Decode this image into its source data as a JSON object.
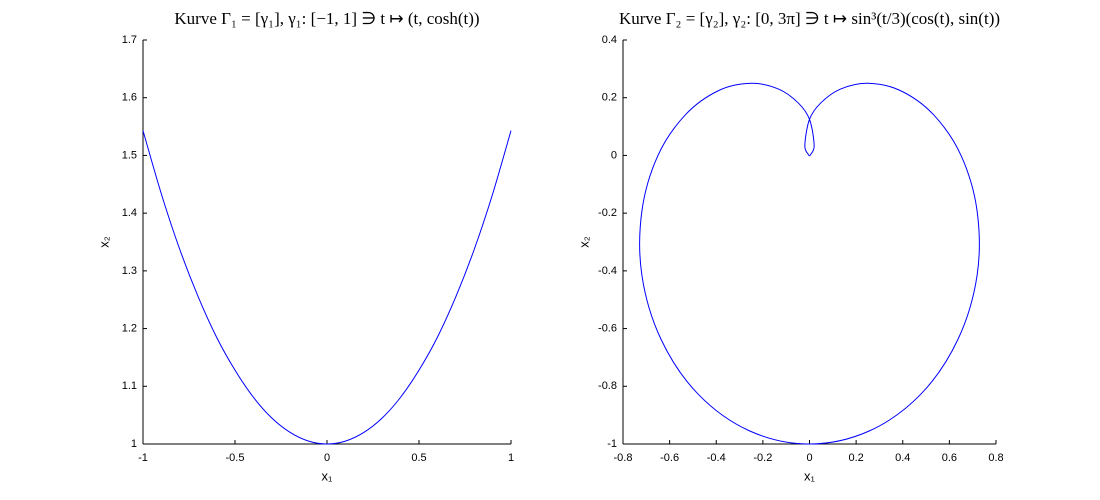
{
  "chart_data": [
    {
      "type": "line",
      "title": "Kurve Γ₁ = [γ₁], γ₁: [−1, 1] ∋ t ↦ (t, cosh(t))",
      "x_label": "x₁",
      "y_label": "x₂",
      "x": [
        -1,
        -0.9,
        -0.8,
        -0.7,
        -0.6,
        -0.5,
        -0.4,
        -0.3,
        -0.2,
        -0.1,
        0,
        0.1,
        0.2,
        0.3,
        0.4,
        0.5,
        0.6,
        0.7,
        0.8,
        0.9,
        1
      ],
      "series": [
        {
          "color": "#0000ff",
          "values": [
            1.543,
            1.433,
            1.337,
            1.255,
            1.185,
            1.128,
            1.081,
            1.045,
            1.02,
            1.005,
            1,
            1.005,
            1.02,
            1.045,
            1.081,
            1.128,
            1.185,
            1.255,
            1.337,
            1.433,
            1.543
          ]
        }
      ],
      "xlim": [
        -1,
        1
      ],
      "xticks": [
        -1,
        -0.5,
        0,
        0.5,
        1
      ],
      "ylim": [
        1,
        1.7
      ],
      "yticks": [
        1,
        1.1,
        1.2,
        1.3,
        1.4,
        1.5,
        1.6,
        1.7
      ]
    },
    {
      "type": "line",
      "title": "Kurve Γ₂ = [γ₂], γ₂: [0, 3π] ∋ t ↦ sin³(t/3)(cos(t), sin(t))",
      "x_label": "x₁",
      "y_label": "x₂",
      "x": [
        0,
        0.0045,
        0.02,
        0,
        -0.0488,
        -0.133,
        -0.25,
        -0.389,
        -0.531,
        -0.65,
        -0.719,
        -0.719,
        -0.637,
        -0.478,
        -0.256,
        0,
        0.256,
        0.478,
        0.637,
        0.719,
        0.719,
        0.65,
        0.531,
        0.389,
        0.25,
        0.133,
        0.0488,
        0,
        -0.02,
        -0.0045,
        0
      ],
      "series": [
        {
          "color": "#0000ff",
          "values": [
            0,
            0.0026,
            0.0346,
            0.125,
            0.1823,
            0.23,
            0.25,
            0.225,
            0.142,
            0,
            -0.193,
            -0.415,
            -0.637,
            -0.827,
            -0.955,
            -1,
            -0.955,
            -0.827,
            -0.637,
            -0.415,
            -0.193,
            0,
            0.142,
            0.225,
            0.25,
            0.23,
            0.1823,
            0.125,
            0.0346,
            0.0026,
            0
          ]
        }
      ],
      "xlim": [
        -0.8,
        0.8
      ],
      "xticks": [
        -0.8,
        -0.6,
        -0.4,
        -0.2,
        0,
        0.2,
        0.4,
        0.6,
        0.8
      ],
      "ylim": [
        -1,
        0.4
      ],
      "yticks": [
        -1,
        -0.8,
        -0.6,
        -0.4,
        -0.2,
        0,
        0.2,
        0.4
      ]
    }
  ]
}
